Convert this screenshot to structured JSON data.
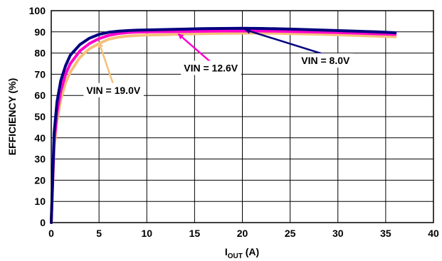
{
  "chart_data": {
    "type": "line",
    "title": "",
    "xlabel_main": "I",
    "xlabel_sub": "OUT",
    "xlabel_unit": " (A)",
    "ylabel": "EFFICIENCY (%)",
    "xlim": [
      0,
      40
    ],
    "ylim": [
      0,
      100
    ],
    "xticks": [
      "0",
      "5",
      "10",
      "15",
      "20",
      "25",
      "30",
      "35",
      "40"
    ],
    "yticks": [
      "0",
      "10",
      "20",
      "30",
      "40",
      "50",
      "60",
      "70",
      "80",
      "90",
      "100"
    ],
    "grid": true,
    "series": [
      {
        "name": "VIN = 19.0V",
        "color": "#f5c07a",
        "x": [
          0,
          0.3,
          0.6,
          1,
          1.5,
          2,
          3,
          4,
          5,
          6,
          7,
          8,
          9,
          10,
          12,
          14,
          16,
          18,
          20,
          22,
          25,
          28,
          30,
          32,
          34,
          36
        ],
        "y": [
          0,
          35,
          48,
          58,
          66,
          71,
          78,
          82,
          84.5,
          86.5,
          87.5,
          88,
          88.3,
          88.5,
          88.7,
          89,
          89.2,
          89.3,
          89.4,
          89.4,
          89.2,
          88.9,
          88.6,
          88.3,
          88,
          87.7
        ]
      },
      {
        "name": "VIN = 12.6V",
        "color": "#ff00cc",
        "x": [
          0,
          0.3,
          0.6,
          1,
          1.5,
          2,
          3,
          4,
          5,
          6,
          7,
          8,
          9,
          10,
          12,
          14,
          16,
          18,
          20,
          22,
          25,
          28,
          30,
          32,
          34,
          36
        ],
        "y": [
          0,
          38,
          52,
          62,
          70,
          75,
          81,
          84.5,
          86.8,
          88.3,
          89.2,
          89.7,
          89.9,
          90,
          90.1,
          90.2,
          90.3,
          90.4,
          90.4,
          90.4,
          90.2,
          89.9,
          89.7,
          89.4,
          89.1,
          88.8
        ]
      },
      {
        "name": "VIN = 8.0V",
        "color": "#000080",
        "x": [
          0,
          0.3,
          0.6,
          1,
          1.5,
          2,
          3,
          4,
          5,
          6,
          7,
          8,
          9,
          10,
          12,
          14,
          16,
          18,
          20,
          22,
          25,
          28,
          30,
          32,
          34,
          36
        ],
        "y": [
          0,
          42,
          57,
          67,
          74,
          79,
          84,
          87,
          88.8,
          89.8,
          90.3,
          90.6,
          90.8,
          90.9,
          91.1,
          91.3,
          91.5,
          91.6,
          91.7,
          91.6,
          91.3,
          90.9,
          90.6,
          90.3,
          90,
          89.6
        ]
      }
    ],
    "annotations": [
      {
        "text": "VIN = 19.0V",
        "target_x": 5,
        "target_y": 85,
        "text_x": 6.5,
        "text_y": 62.5
      },
      {
        "text": "VIN = 12.6V",
        "target_x": 13.3,
        "target_y": 89,
        "text_x": 16.7,
        "text_y": 73
      },
      {
        "text": "VIN = 8.0V",
        "target_x": 20.3,
        "target_y": 91,
        "text_x": 28.7,
        "text_y": 76.5
      }
    ]
  }
}
